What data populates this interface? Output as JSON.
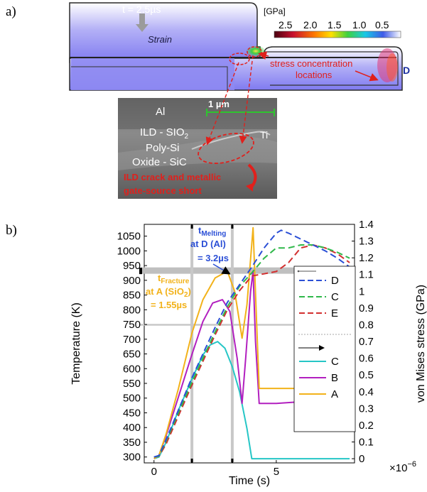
{
  "panel_a": {
    "label": "a)",
    "time_text": "t = 2.5µs",
    "strain_text": "Strain",
    "unit_text": "[GPa]",
    "colorbar_ticks": [
      "2.5",
      "2.0",
      "1.5",
      "1.0",
      "0.5"
    ],
    "stress_text_1": "stress concentration",
    "stress_text_2": "locations",
    "point_label": "D",
    "sem_labels": {
      "al": "Al",
      "scale": "1 µm",
      "ild": "ILD - SIO",
      "ild_sub": "2",
      "ti": "Ti",
      "poly": "Poly-Si",
      "oxide": "Oxide - SiC",
      "crack_1": "ILD crack and metallic",
      "crack_2": "gate-source short"
    },
    "colors": {
      "stress": "#e0201c",
      "domain": "#8a86f0",
      "scale": "#2fc42f"
    }
  },
  "panel_b": {
    "label": "b)",
    "annotation_melt": {
      "t": "t",
      "sub": "Melting",
      "line2": "at D (Al)",
      "line3": "= 3.2µs"
    },
    "annotation_fracture": {
      "t": "t",
      "sub": "Fracture",
      "line2": "at A (SiO",
      "line2_sub": "2",
      "line2_end": ")",
      "line3": "= 1.55µs"
    },
    "x_exponent_base": "×10",
    "x_exponent": "−6"
  },
  "chart_data": {
    "type": "line",
    "xlabel": "Time (s)",
    "ylabel": "Temperature (K)",
    "ylabel_right": "von Mises stress (GPa)",
    "xlim": [
      -0.4,
      8.2
    ],
    "x_ticks": [
      "0",
      "5"
    ],
    "x_tick_values": [
      0,
      5
    ],
    "ylim": [
      280,
      1090
    ],
    "y_ticks": [
      "300",
      "350",
      "400",
      "450",
      "500",
      "550",
      "600",
      "650",
      "700",
      "750",
      "800",
      "850",
      "900",
      "950",
      "1000",
      "1050"
    ],
    "y_tick_values": [
      300,
      350,
      400,
      450,
      500,
      550,
      600,
      650,
      700,
      750,
      800,
      850,
      900,
      950,
      1000,
      1050
    ],
    "y2lim": [
      -0.025,
      1.4
    ],
    "y2_ticks": [
      "0",
      "0.1",
      "0.2",
      "0.3",
      "0.4",
      "0.5",
      "0.6",
      "0.7",
      "0.8",
      "0.9",
      "1",
      "1.1",
      "1.2",
      "1.3",
      "1.4"
    ],
    "y2_tick_values": [
      0,
      0.1,
      0.2,
      0.3,
      0.4,
      0.5,
      0.6,
      0.7,
      0.8,
      0.9,
      1,
      1.1,
      1.2,
      1.3,
      1.4
    ],
    "reference_lines": {
      "temperature": 933,
      "stress": 0.8,
      "times": [
        1.55,
        3.2
      ]
    },
    "series": [
      {
        "name": "D",
        "axis": "temperature",
        "style": "dashed",
        "color": "#2b4fd6",
        "x": [
          0,
          0.2,
          0.5,
          1,
          1.5,
          2,
          2.5,
          3,
          3.5,
          4,
          4.5,
          5,
          5.2,
          5.5,
          6,
          6.5,
          7,
          7.5,
          8
        ],
        "y": [
          300,
          305,
          360,
          460,
          560,
          650,
          740,
          825,
          885,
          945,
          1010,
          1060,
          1070,
          1060,
          1040,
          1020,
          1000,
          975,
          945
        ]
      },
      {
        "name": "C",
        "axis": "temperature",
        "style": "dashed",
        "color": "#2fb84a",
        "x": [
          0,
          0.2,
          0.5,
          1,
          1.5,
          2,
          2.5,
          3,
          3.5,
          4,
          4.5,
          5,
          5.5,
          6,
          6.5,
          7,
          7.5,
          8
        ],
        "y": [
          300,
          303,
          355,
          450,
          545,
          635,
          725,
          810,
          880,
          925,
          975,
          1010,
          1010,
          1020,
          1020,
          1010,
          995,
          975
        ]
      },
      {
        "name": "E",
        "axis": "temperature",
        "style": "dashed",
        "color": "#d22f2f",
        "x": [
          0,
          0.2,
          0.5,
          1,
          1.5,
          2,
          2.5,
          3,
          3.5,
          4,
          4.5,
          5,
          5.5,
          6,
          6.5,
          7,
          7.5,
          8
        ],
        "y": [
          300,
          302,
          345,
          440,
          535,
          625,
          715,
          800,
          865,
          915,
          922,
          930,
          960,
          1010,
          1020,
          1010,
          990,
          960
        ]
      },
      {
        "name": "C",
        "axis": "stress",
        "style": "solid",
        "color": "#26c6c6",
        "x": [
          0,
          0.2,
          0.5,
          1,
          1.5,
          2,
          2.3,
          2.6,
          2.9,
          3.2,
          3.5,
          3.8,
          4,
          4.5,
          5,
          6,
          7,
          8
        ],
        "y": [
          0,
          0.01,
          0.1,
          0.29,
          0.46,
          0.62,
          0.68,
          0.7,
          0.66,
          0.55,
          0.4,
          0.18,
          0,
          0,
          0,
          0,
          0,
          0
        ]
      },
      {
        "name": "B",
        "axis": "stress",
        "style": "solid",
        "color": "#b21fbf",
        "x": [
          0,
          0.2,
          0.5,
          1,
          1.5,
          2,
          2.4,
          2.8,
          3.1,
          3.4,
          3.6,
          3.75,
          3.95,
          4.05,
          4.15,
          4.3,
          5,
          6,
          7,
          8
        ],
        "y": [
          0,
          0.02,
          0.14,
          0.37,
          0.6,
          0.82,
          0.93,
          0.95,
          0.88,
          0.6,
          0.33,
          0.6,
          1.0,
          1.12,
          0.7,
          0.33,
          0.33,
          0.34,
          0.34,
          0.34
        ]
      },
      {
        "name": "A",
        "axis": "stress",
        "style": "solid",
        "color": "#f2b21a",
        "x": [
          0,
          0.2,
          0.5,
          1,
          1.55,
          2,
          2.5,
          3,
          3.3,
          3.6,
          3.8,
          4.05,
          4.2,
          4.3,
          5,
          6,
          7,
          8
        ],
        "y": [
          0,
          0.02,
          0.15,
          0.42,
          0.75,
          0.95,
          1.08,
          1.12,
          1.0,
          0.72,
          0.92,
          1.38,
          0.8,
          0.42,
          0.42,
          0.42,
          0.4,
          0.38
        ]
      }
    ]
  }
}
